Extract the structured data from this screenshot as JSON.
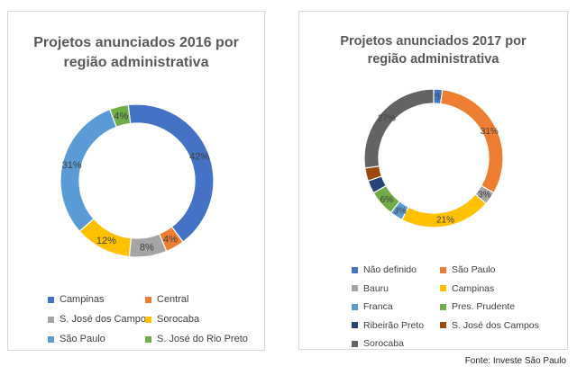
{
  "chart_data": [
    {
      "type": "pie",
      "donut": true,
      "title_lines": [
        "Projetos anunciados 2016 por",
        "região administrativa"
      ],
      "categories": [
        "Campinas",
        "Central",
        "S. José dos Campos",
        "Sorocaba",
        "São Paulo",
        "S. José do Rio Preto"
      ],
      "values": [
        42,
        4,
        8,
        12,
        31,
        4
      ],
      "labels": [
        "42%",
        "4%",
        "8%",
        "12%",
        "31%",
        "4%"
      ],
      "colors": [
        "#4472C4",
        "#ED7D31",
        "#A5A5A5",
        "#FFC000",
        "#5B9BD5",
        "#70AD47"
      ],
      "legend_position": "bottom"
    },
    {
      "type": "pie",
      "donut": true,
      "title_lines": [
        "Projetos anunciados 2017 por",
        "região administrativa"
      ],
      "categories": [
        "Não definido",
        "São Paulo",
        "Bauru",
        "Campinas",
        "Franca",
        "Pres. Prudente",
        "Ribeirão Preto",
        "S. José dos Campos",
        "Sorocaba"
      ],
      "values": [
        2,
        31,
        3,
        21,
        3,
        6,
        3,
        3,
        27
      ],
      "labels": [
        "2%",
        "31%",
        "3%",
        "21%",
        "3%",
        "6%",
        "",
        "",
        "27%"
      ],
      "colors": [
        "#4472C4",
        "#ED7D31",
        "#A5A5A5",
        "#FFC000",
        "#5B9BD5",
        "#70AD47",
        "#264478",
        "#9E480E",
        "#636363"
      ],
      "legend_position": "bottom"
    }
  ],
  "source": "Fonte: Investe São Paulo"
}
